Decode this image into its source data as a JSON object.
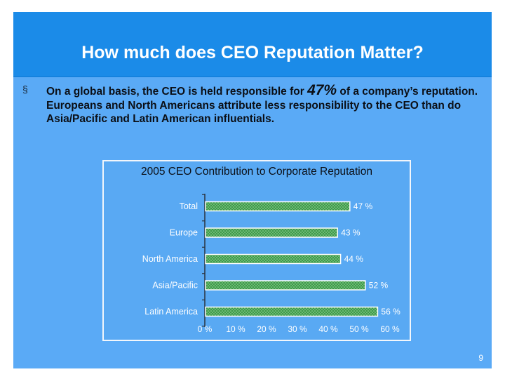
{
  "slide": {
    "title": "How much does CEO Reputation Matter?",
    "bullet": {
      "marker": "§",
      "text_before": "On a global basis, the CEO is held responsible for ",
      "highlight": "47%",
      "text_after": " of a company’s reputation. Europeans and North Americans attribute less responsibility to the CEO than do Asia/Pacific and Latin American influentials."
    },
    "page_number": "9"
  },
  "colors": {
    "slide_bg": "#5aaaf6",
    "title_bg": "#1b8be8",
    "bar_fill": "#3f9a4a",
    "label_text": "#ffffff"
  },
  "chart_data": {
    "type": "bar",
    "orientation": "horizontal",
    "title": "2005 CEO Contribution to Corporate Reputation",
    "categories": [
      "Total",
      "Europe",
      "North America",
      "Asia/Pacific",
      "Latin America"
    ],
    "values": [
      47,
      43,
      44,
      52,
      56
    ],
    "value_labels": [
      "47 %",
      "43 %",
      "44 %",
      "52 %",
      "56 %"
    ],
    "xlim": [
      0,
      60
    ],
    "x_ticks": [
      "0 %",
      "10 %",
      "20 %",
      "30 %",
      "40 %",
      "50 %",
      "60 %"
    ],
    "grid": false,
    "legend": "none"
  }
}
